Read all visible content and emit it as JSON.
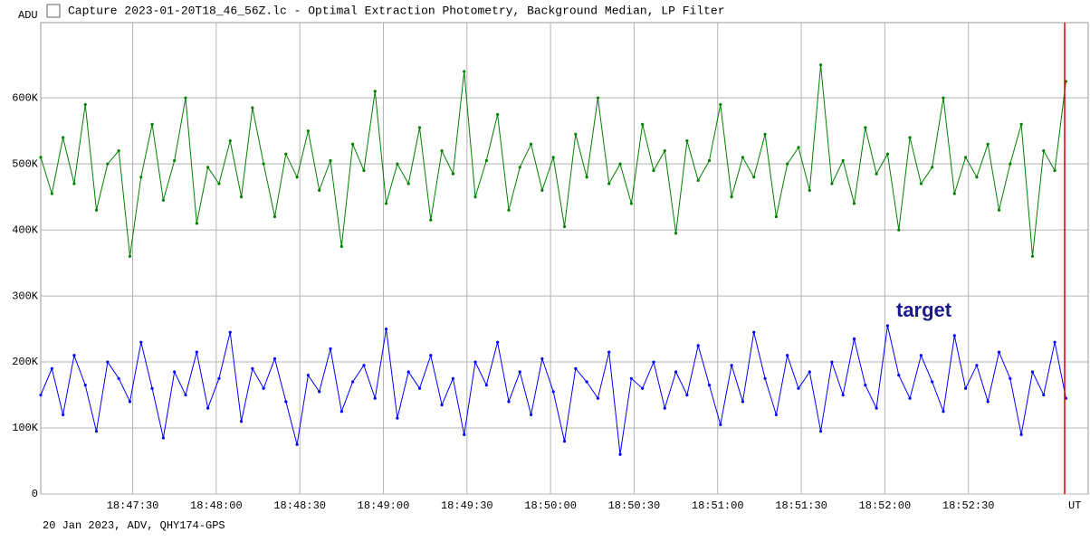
{
  "chart_data": {
    "type": "line",
    "title": "Capture 2023-01-20T18_46_56Z.lc - Optimal Extraction Photometry, Background Median, LP Filter",
    "y_label": "ADU",
    "x_label": "UT",
    "footer": "20 Jan 2023, ADV, QHY174-GPS",
    "annotation": "target",
    "grid": true,
    "xlim": [
      "18:46:57",
      "18:53:13"
    ],
    "xticks": [
      "18:47:30",
      "18:48:00",
      "18:48:30",
      "18:49:00",
      "18:49:30",
      "18:50:00",
      "18:50:30",
      "18:51:00",
      "18:51:30",
      "18:52:00",
      "18:52:30"
    ],
    "ylim": [
      0,
      714000
    ],
    "yticks": [
      0,
      {
        "value": 100000,
        "label": "100K"
      },
      {
        "value": 200000,
        "label": "200K"
      },
      {
        "value": 300000,
        "label": "300K"
      },
      {
        "value": 400000,
        "label": "400K"
      },
      {
        "value": 500000,
        "label": "500K"
      },
      {
        "value": 600000,
        "label": "600K"
      }
    ],
    "x": [
      "18:46:57",
      "18:47:01",
      "18:47:05",
      "18:47:09",
      "18:47:13",
      "18:47:17",
      "18:47:21",
      "18:47:25",
      "18:47:29",
      "18:47:33",
      "18:47:37",
      "18:47:41",
      "18:47:45",
      "18:47:49",
      "18:47:53",
      "18:47:57",
      "18:48:01",
      "18:48:05",
      "18:48:09",
      "18:48:13",
      "18:48:17",
      "18:48:21",
      "18:48:25",
      "18:48:29",
      "18:48:33",
      "18:48:37",
      "18:48:41",
      "18:48:45",
      "18:48:49",
      "18:48:53",
      "18:48:57",
      "18:49:01",
      "18:49:05",
      "18:49:09",
      "18:49:13",
      "18:49:17",
      "18:49:21",
      "18:49:25",
      "18:49:29",
      "18:49:33",
      "18:49:37",
      "18:49:41",
      "18:49:45",
      "18:49:49",
      "18:49:53",
      "18:49:57",
      "18:50:01",
      "18:50:05",
      "18:50:09",
      "18:50:13",
      "18:50:17",
      "18:50:21",
      "18:50:25",
      "18:50:29",
      "18:50:33",
      "18:50:37",
      "18:50:41",
      "18:50:45",
      "18:50:49",
      "18:50:53",
      "18:50:57",
      "18:51:01",
      "18:51:05",
      "18:51:09",
      "18:51:13",
      "18:51:17",
      "18:51:21",
      "18:51:25",
      "18:51:29",
      "18:51:33",
      "18:51:37",
      "18:51:41",
      "18:51:45",
      "18:51:49",
      "18:51:53",
      "18:51:57",
      "18:52:01",
      "18:52:05",
      "18:52:09",
      "18:52:13",
      "18:52:17",
      "18:52:21",
      "18:52:25",
      "18:52:29",
      "18:52:33",
      "18:52:37",
      "18:52:41",
      "18:52:45",
      "18:52:49",
      "18:52:53",
      "18:52:57",
      "18:53:01",
      "18:53:05"
    ],
    "series": [
      {
        "color": "#008000",
        "values": [
          510000,
          455000,
          540000,
          470000,
          590000,
          430000,
          500000,
          520000,
          360000,
          480000,
          560000,
          445000,
          505000,
          600000,
          410000,
          495000,
          470000,
          535000,
          450000,
          585000,
          500000,
          420000,
          515000,
          480000,
          550000,
          460000,
          505000,
          375000,
          530000,
          490000,
          610000,
          440000,
          500000,
          470000,
          555000,
          415000,
          520000,
          485000,
          640000,
          450000,
          505000,
          575000,
          430000,
          495000,
          530000,
          460000,
          510000,
          405000,
          545000,
          480000,
          600000,
          470000,
          500000,
          440000,
          560000,
          490000,
          520000,
          395000,
          535000,
          475000,
          505000,
          590000,
          450000,
          510000,
          480000,
          545000,
          420000,
          500000,
          525000,
          460000,
          650000,
          470000,
          505000,
          440000,
          555000,
          485000,
          515000,
          400000,
          540000,
          470000,
          495000,
          600000,
          455000,
          510000,
          480000,
          530000,
          430000,
          500000,
          560000,
          360000,
          520000,
          490000,
          625000
        ]
      },
      {
        "color": "#0000ff",
        "values": [
          150000,
          190000,
          120000,
          210000,
          165000,
          95000,
          200000,
          175000,
          140000,
          230000,
          160000,
          85000,
          185000,
          150000,
          215000,
          130000,
          175000,
          245000,
          110000,
          190000,
          160000,
          205000,
          140000,
          75000,
          180000,
          155000,
          220000,
          125000,
          170000,
          195000,
          145000,
          250000,
          115000,
          185000,
          160000,
          210000,
          135000,
          175000,
          90000,
          200000,
          165000,
          230000,
          140000,
          185000,
          120000,
          205000,
          155000,
          80000,
          190000,
          170000,
          145000,
          215000,
          60000,
          175000,
          160000,
          200000,
          130000,
          185000,
          150000,
          225000,
          165000,
          105000,
          195000,
          140000,
          245000,
          175000,
          120000,
          210000,
          160000,
          185000,
          95000,
          200000,
          150000,
          235000,
          165000,
          130000,
          255000,
          180000,
          145000,
          210000,
          170000,
          125000,
          240000,
          160000,
          195000,
          140000,
          215000,
          175000,
          90000,
          185000,
          150000,
          230000,
          145000
        ]
      }
    ]
  }
}
